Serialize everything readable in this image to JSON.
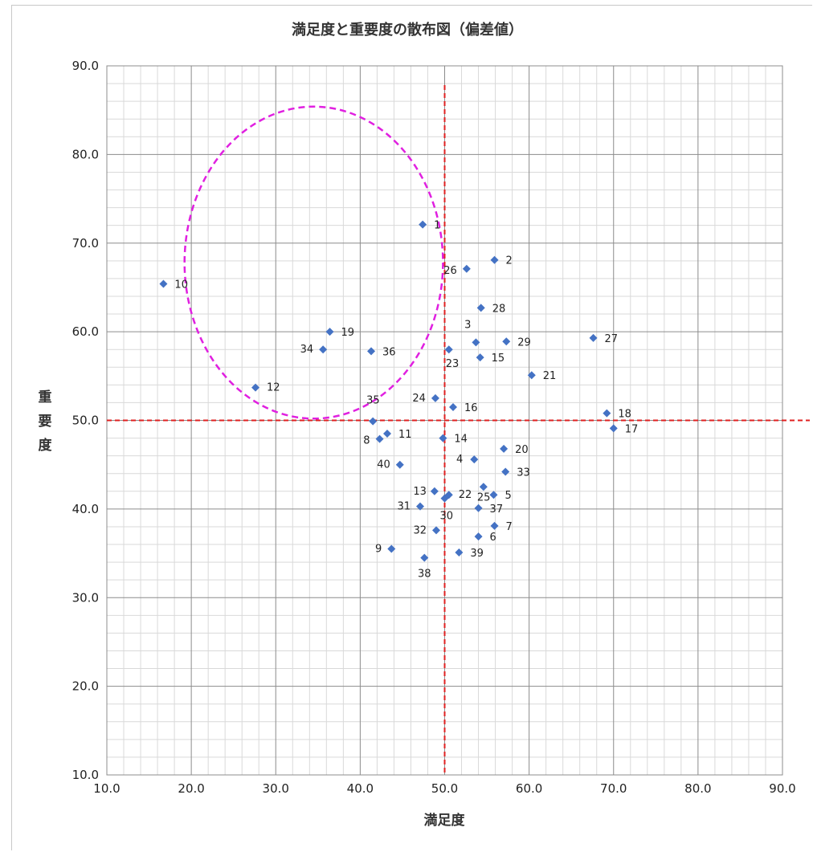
{
  "chart_data": {
    "type": "scatter",
    "title": "満足度と重要度の散布図（偏差値）",
    "xlabel": "満足度",
    "ylabel": "重要度",
    "xlim": [
      10,
      90
    ],
    "ylim": [
      10,
      90
    ],
    "x_ticks": [
      "10.0",
      "20.0",
      "30.0",
      "40.0",
      "50.0",
      "60.0",
      "70.0",
      "80.0",
      "90.0"
    ],
    "y_ticks": [
      "10.0",
      "20.0",
      "30.0",
      "40.0",
      "50.0",
      "60.0",
      "70.0",
      "80.0",
      "90.0"
    ],
    "grid": true,
    "reference_lines": {
      "x": 50,
      "y": 50,
      "color": "#e02020",
      "style": "dashed"
    },
    "highlight_circle": {
      "center": [
        34.5,
        67.8
      ],
      "radius_x": 15.3,
      "radius_y": 17.6,
      "color": "#e020e0",
      "style": "dashed"
    },
    "marker_color": "#4472c4",
    "points": [
      {
        "label": "1",
        "x": 47.4,
        "y": 72.1
      },
      {
        "label": "2",
        "x": 55.9,
        "y": 68.1
      },
      {
        "label": "3",
        "x": 53.7,
        "y": 58.8
      },
      {
        "label": "4",
        "x": 53.5,
        "y": 45.6
      },
      {
        "label": "5",
        "x": 55.8,
        "y": 41.6
      },
      {
        "label": "6",
        "x": 54.0,
        "y": 36.9
      },
      {
        "label": "7",
        "x": 55.9,
        "y": 38.1
      },
      {
        "label": "8",
        "x": 42.3,
        "y": 47.9
      },
      {
        "label": "9",
        "x": 43.7,
        "y": 35.5
      },
      {
        "label": "10",
        "x": 16.7,
        "y": 65.4
      },
      {
        "label": "11",
        "x": 43.2,
        "y": 48.5
      },
      {
        "label": "12",
        "x": 27.6,
        "y": 53.7
      },
      {
        "label": "13",
        "x": 48.8,
        "y": 42.0
      },
      {
        "label": "14",
        "x": 49.8,
        "y": 48.0
      },
      {
        "label": "15",
        "x": 54.2,
        "y": 57.1
      },
      {
        "label": "16",
        "x": 51.0,
        "y": 51.5
      },
      {
        "label": "17",
        "x": 70.0,
        "y": 49.1
      },
      {
        "label": "18",
        "x": 69.2,
        "y": 50.8
      },
      {
        "label": "19",
        "x": 36.4,
        "y": 60.0
      },
      {
        "label": "20",
        "x": 57.0,
        "y": 46.8
      },
      {
        "label": "21",
        "x": 60.3,
        "y": 55.1
      },
      {
        "label": "22",
        "x": 50.5,
        "y": 41.6
      },
      {
        "label": "23",
        "x": 50.5,
        "y": 58.0
      },
      {
        "label": "24",
        "x": 48.9,
        "y": 52.5
      },
      {
        "label": "25",
        "x": 54.6,
        "y": 42.5
      },
      {
        "label": "26",
        "x": 52.6,
        "y": 67.1
      },
      {
        "label": "27",
        "x": 67.6,
        "y": 59.3
      },
      {
        "label": "28",
        "x": 54.3,
        "y": 62.7
      },
      {
        "label": "29",
        "x": 57.3,
        "y": 58.9
      },
      {
        "label": "30",
        "x": 50.0,
        "y": 41.2
      },
      {
        "label": "31",
        "x": 47.1,
        "y": 40.3
      },
      {
        "label": "32",
        "x": 49.0,
        "y": 37.6
      },
      {
        "label": "33",
        "x": 57.2,
        "y": 44.2
      },
      {
        "label": "34",
        "x": 35.6,
        "y": 58.0
      },
      {
        "label": "35",
        "x": 41.5,
        "y": 49.9
      },
      {
        "label": "36",
        "x": 41.3,
        "y": 57.8
      },
      {
        "label": "37",
        "x": 54.0,
        "y": 40.1
      },
      {
        "label": "38",
        "x": 47.6,
        "y": 34.5
      },
      {
        "label": "39",
        "x": 51.7,
        "y": 35.1
      },
      {
        "label": "40",
        "x": 44.7,
        "y": 45.0
      }
    ]
  }
}
